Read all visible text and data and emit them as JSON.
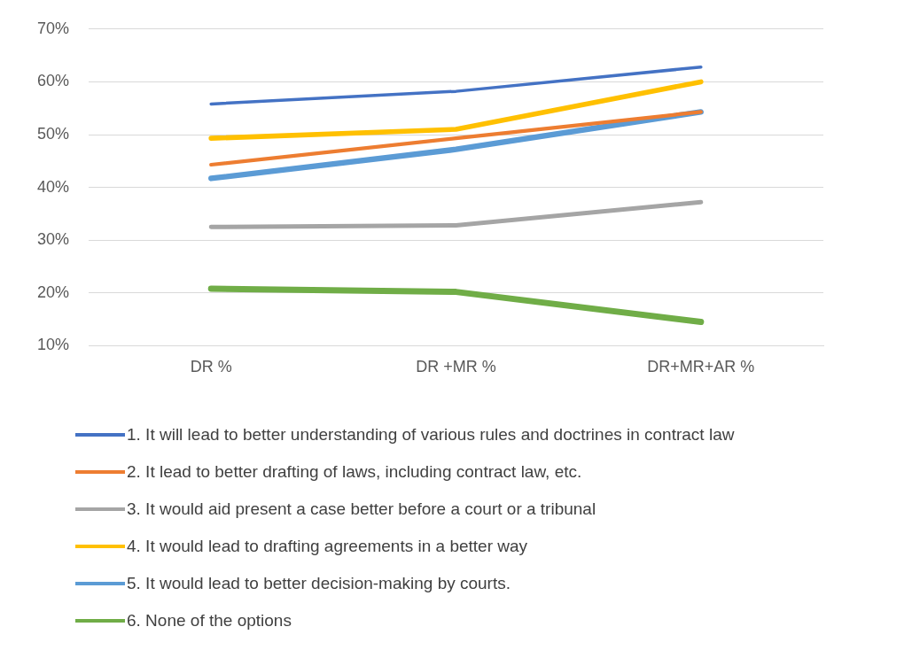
{
  "chart_data": {
    "type": "line",
    "categories": [
      "DR %",
      "DR +MR %",
      "DR+MR+AR %"
    ],
    "series": [
      {
        "name": "1. It will lead to better understanding of various rules and doctrines in contract law",
        "color": "#4472c4",
        "values": [
          55.8,
          58.2,
          62.8
        ]
      },
      {
        "name": "2. It lead to better drafting of laws, including contract law, etc.",
        "color": "#ed7d31",
        "values": [
          44.3,
          49.3,
          54.3
        ]
      },
      {
        "name": "3. It would aid present a case better before a court or a tribunal",
        "color": "#a5a5a5",
        "values": [
          32.5,
          32.8,
          37.2
        ]
      },
      {
        "name": "4. It would lead to drafting agreements in a better way",
        "color": "#ffc000",
        "values": [
          49.3,
          51.0,
          60.0
        ]
      },
      {
        "name": "5. It would lead to better decision-making by courts.",
        "color": "#5b9bd5",
        "values": [
          41.7,
          47.2,
          54.3
        ]
      },
      {
        "name": "6. None of the options",
        "color": "#70ad47",
        "values": [
          20.8,
          20.2,
          14.5
        ]
      }
    ],
    "ylim": [
      10,
      70
    ],
    "yticks": [
      {
        "value": 10,
        "label": "10%"
      },
      {
        "value": 20,
        "label": "20%"
      },
      {
        "value": 30,
        "label": "30%"
      },
      {
        "value": 40,
        "label": "40%"
      },
      {
        "value": 50,
        "label": "50%"
      },
      {
        "value": 60,
        "label": "60%"
      },
      {
        "value": 70,
        "label": "70%"
      }
    ],
    "grid": "y",
    "legend": "bottom",
    "marker": "none",
    "line_style": "solid"
  }
}
